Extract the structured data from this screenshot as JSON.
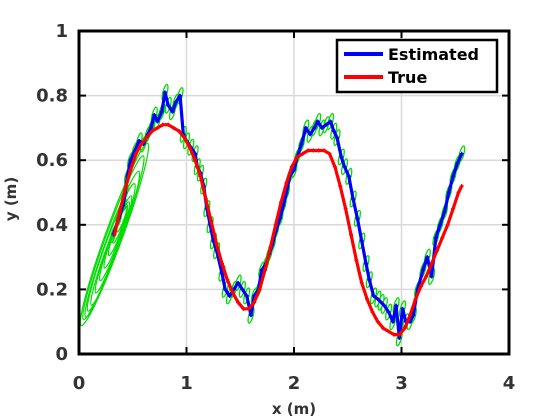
{
  "chart_data": {
    "type": "line",
    "title": "",
    "xlabel": "x (m)",
    "ylabel": "y (m)",
    "xlim": [
      0,
      4
    ],
    "ylim": [
      0,
      1
    ],
    "grid": true,
    "legend_position": "top-right",
    "xticks": [
      "0",
      "1",
      "2",
      "3",
      "4"
    ],
    "yticks": [
      "0",
      "0.2",
      "0.4",
      "0.6",
      "0.8",
      "1"
    ],
    "series": [
      {
        "name": "Estimated",
        "color": "#0000ff",
        "x": [
          0.32,
          0.37,
          0.41,
          0.43,
          0.45,
          0.48,
          0.52,
          0.56,
          0.6,
          0.64,
          0.67,
          0.7,
          0.73,
          0.77,
          0.8,
          0.83,
          0.87,
          0.9,
          0.94,
          0.97,
          1.0,
          1.04,
          1.08,
          1.1,
          1.13,
          1.16,
          1.19,
          1.22,
          1.25,
          1.28,
          1.33,
          1.36,
          1.4,
          1.44,
          1.48,
          1.52,
          1.56,
          1.6,
          1.63,
          1.67,
          1.7,
          1.74,
          1.77,
          1.8,
          1.83,
          1.87,
          1.9,
          1.93,
          1.96,
          2.0,
          2.03,
          2.07,
          2.11,
          2.15,
          2.19,
          2.22,
          2.26,
          2.3,
          2.34,
          2.37,
          2.4,
          2.44,
          2.47,
          2.51,
          2.55,
          2.59,
          2.63,
          2.67,
          2.7,
          2.74,
          2.78,
          2.81,
          2.84,
          2.88,
          2.92,
          2.95,
          2.98,
          3.01,
          3.04,
          3.08,
          3.11,
          3.15,
          3.2,
          3.24,
          3.28,
          3.32,
          3.36,
          3.4,
          3.44,
          3.48,
          3.52,
          3.56
        ],
        "y": [
          0.37,
          0.42,
          0.46,
          0.5,
          0.55,
          0.6,
          0.63,
          0.66,
          0.65,
          0.68,
          0.7,
          0.74,
          0.72,
          0.75,
          0.81,
          0.77,
          0.75,
          0.78,
          0.8,
          0.68,
          0.66,
          0.64,
          0.62,
          0.58,
          0.56,
          0.52,
          0.45,
          0.4,
          0.35,
          0.32,
          0.25,
          0.2,
          0.18,
          0.2,
          0.22,
          0.2,
          0.18,
          0.12,
          0.18,
          0.2,
          0.26,
          0.28,
          0.31,
          0.34,
          0.38,
          0.42,
          0.46,
          0.5,
          0.55,
          0.57,
          0.61,
          0.65,
          0.7,
          0.68,
          0.7,
          0.72,
          0.7,
          0.71,
          0.72,
          0.69,
          0.67,
          0.61,
          0.58,
          0.55,
          0.48,
          0.42,
          0.35,
          0.28,
          0.23,
          0.18,
          0.17,
          0.16,
          0.15,
          0.13,
          0.1,
          0.15,
          0.05,
          0.14,
          0.1,
          0.1,
          0.12,
          0.2,
          0.26,
          0.3,
          0.24,
          0.36,
          0.4,
          0.44,
          0.5,
          0.55,
          0.59,
          0.62
        ]
      },
      {
        "name": "True",
        "color": "#ff0000",
        "x": [
          0.33,
          0.38,
          0.43,
          0.48,
          0.53,
          0.58,
          0.63,
          0.68,
          0.73,
          0.78,
          0.83,
          0.88,
          0.93,
          0.98,
          1.03,
          1.08,
          1.13,
          1.18,
          1.23,
          1.28,
          1.33,
          1.38,
          1.43,
          1.48,
          1.53,
          1.58,
          1.63,
          1.68,
          1.73,
          1.78,
          1.83,
          1.88,
          1.93,
          1.98,
          2.03,
          2.08,
          2.13,
          2.18,
          2.23,
          2.28,
          2.33,
          2.38,
          2.43,
          2.48,
          2.53,
          2.58,
          2.63,
          2.68,
          2.73,
          2.78,
          2.83,
          2.88,
          2.93,
          2.98,
          3.03,
          3.08,
          3.13,
          3.18,
          3.23,
          3.28,
          3.33,
          3.38,
          3.43,
          3.48,
          3.53,
          3.56
        ],
        "y": [
          0.37,
          0.44,
          0.51,
          0.57,
          0.62,
          0.65,
          0.67,
          0.69,
          0.7,
          0.71,
          0.71,
          0.7,
          0.69,
          0.67,
          0.64,
          0.6,
          0.55,
          0.48,
          0.41,
          0.34,
          0.28,
          0.23,
          0.19,
          0.16,
          0.14,
          0.14,
          0.16,
          0.2,
          0.26,
          0.33,
          0.4,
          0.47,
          0.53,
          0.58,
          0.61,
          0.62,
          0.63,
          0.63,
          0.63,
          0.63,
          0.62,
          0.58,
          0.52,
          0.45,
          0.37,
          0.29,
          0.22,
          0.17,
          0.13,
          0.1,
          0.08,
          0.07,
          0.06,
          0.06,
          0.08,
          0.12,
          0.17,
          0.21,
          0.24,
          0.28,
          0.32,
          0.36,
          0.4,
          0.45,
          0.5,
          0.52
        ]
      }
    ],
    "uncertainty_ellipses": {
      "color": "#00dd00",
      "center_ellipses": [
        {
          "cx": 0.33,
          "cy": 0.37,
          "rx": 0.08,
          "ry": 0.3
        },
        {
          "cx": 0.32,
          "cy": 0.36,
          "rx": 0.07,
          "ry": 0.27
        },
        {
          "cx": 0.31,
          "cy": 0.34,
          "rx": 0.065,
          "ry": 0.24
        },
        {
          "cx": 0.3,
          "cy": 0.33,
          "rx": 0.06,
          "ry": 0.21
        },
        {
          "cx": 0.3,
          "cy": 0.32,
          "rx": 0.05,
          "ry": 0.18
        },
        {
          "cx": 0.31,
          "cy": 0.33,
          "rx": 0.045,
          "ry": 0.15
        },
        {
          "cx": 0.32,
          "cy": 0.34,
          "rx": 0.04,
          "ry": 0.12
        },
        {
          "cx": 0.34,
          "cy": 0.36,
          "rx": 0.035,
          "ry": 0.1
        },
        {
          "cx": 0.36,
          "cy": 0.38,
          "rx": 0.03,
          "ry": 0.08
        },
        {
          "cx": 0.38,
          "cy": 0.4,
          "rx": 0.025,
          "ry": 0.06
        },
        {
          "cx": 0.4,
          "cy": 0.42,
          "rx": 0.02,
          "ry": 0.045
        }
      ],
      "point_ellipse": {
        "rx": 0.02,
        "ry": 0.025
      }
    }
  }
}
